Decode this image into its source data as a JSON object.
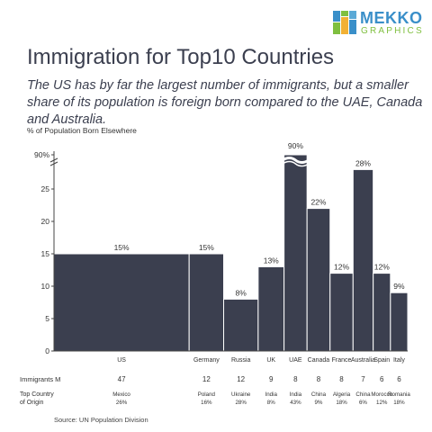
{
  "brand": {
    "name": "MEKKO",
    "sub": "GRAPHICS",
    "colors": [
      "#3a8fc9",
      "#7fbf3f",
      "#f2b134",
      "#5aa9d6"
    ]
  },
  "title": "Immigration for Top10 Countries",
  "subtitle": "The US has by far the largest number of immigrants, but a smaller share of its population is foreign born compared to the UAE, Canada and Australia.",
  "source": "Source: UN Population Division",
  "chart_data": {
    "type": "bar",
    "ylabel": "% of Population Born Elsewhere",
    "ylim": [
      0,
      30
    ],
    "yticks": [
      "0",
      "5",
      "10",
      "15",
      "20",
      "25",
      "90%"
    ],
    "axis_break_label": "90%",
    "bar_color": "#3b3f4f",
    "categories": [
      "US",
      "Germany",
      "Russia",
      "UK",
      "UAE",
      "Canada",
      "France",
      "Australia",
      "Spain",
      "Italy"
    ],
    "values": [
      15,
      15,
      8,
      13,
      90,
      22,
      12,
      28,
      12,
      9
    ],
    "value_labels": [
      "15%",
      "15%",
      "8%",
      "13%",
      "90%",
      "22%",
      "12%",
      "28%",
      "12%",
      "9%"
    ],
    "widths": [
      47,
      12,
      12,
      9,
      8,
      8,
      8,
      7,
      6,
      6
    ],
    "row_labels": {
      "immigrants": "Immigrants M",
      "origin": [
        "Top Country",
        "of Origin"
      ]
    },
    "immigrants": [
      "47",
      "12",
      "12",
      "9",
      "8",
      "8",
      "8",
      "7",
      "6",
      "6"
    ],
    "origin_country": [
      "Mexico",
      "Poland",
      "Ukraine",
      "India",
      "India",
      "China",
      "Algeria",
      "China",
      "Morocco",
      "Romania"
    ],
    "origin_share": [
      "26%",
      "16%",
      "28%",
      "8%",
      "43%",
      "9%",
      "18%",
      "6%",
      "12%",
      "18%"
    ]
  }
}
